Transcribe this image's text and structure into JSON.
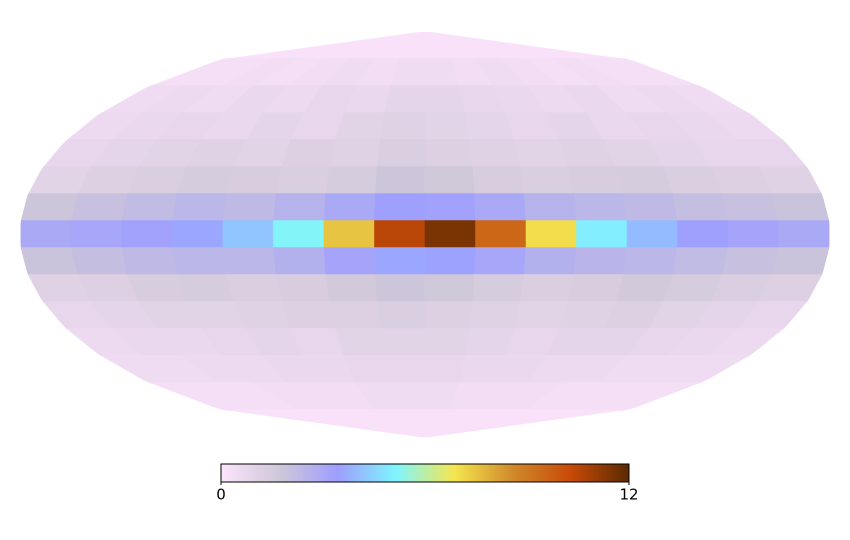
{
  "chart_data": {
    "type": "mollweide",
    "clim": [
      0,
      12
    ],
    "cbar_ticks": [
      0,
      12
    ],
    "colormap": [
      "#fde4fd",
      "#cfc8d8",
      "#9e9eff",
      "#7ff5ff",
      "#f5e650",
      "#d08a2a",
      "#c84a08",
      "#5a2a00"
    ],
    "values": [
      [
        0.2,
        0.2,
        0.2,
        0.2,
        0.2,
        0.2,
        0.2,
        0.2,
        0.2,
        0.2,
        0.2,
        0.2,
        0.2,
        0.2,
        0.2,
        0.2
      ],
      [
        0.3,
        0.3,
        0.4,
        0.3,
        0.4,
        0.5,
        0.4,
        0.5,
        0.5,
        0.4,
        0.5,
        0.4,
        0.3,
        0.4,
        0.3,
        0.3
      ],
      [
        0.5,
        0.6,
        0.5,
        0.7,
        0.6,
        0.8,
        0.7,
        0.9,
        0.9,
        0.8,
        0.7,
        0.6,
        0.7,
        0.5,
        0.6,
        0.5
      ],
      [
        0.6,
        0.7,
        0.8,
        0.7,
        0.9,
        0.8,
        1.0,
        1.1,
        1.0,
        0.9,
        0.8,
        0.9,
        0.7,
        0.8,
        0.7,
        0.6
      ],
      [
        0.8,
        0.9,
        1.0,
        1.1,
        1.0,
        1.2,
        1.1,
        1.3,
        1.2,
        1.1,
        1.0,
        1.1,
        1.0,
        0.9,
        0.8,
        0.8
      ],
      [
        1.0,
        1.2,
        1.3,
        1.5,
        1.4,
        1.3,
        1.5,
        1.8,
        1.7,
        1.4,
        1.3,
        1.4,
        1.5,
        1.3,
        1.2,
        1.1
      ],
      [
        1.8,
        2.0,
        2.2,
        2.4,
        2.3,
        2.6,
        3.0,
        3.4,
        3.3,
        3.0,
        2.6,
        2.4,
        2.3,
        2.1,
        2.0,
        1.9
      ],
      [
        3.0,
        3.1,
        3.3,
        3.6,
        4.2,
        5.2,
        7.5,
        10.5,
        11.5,
        9.5,
        7.0,
        5.0,
        4.0,
        3.4,
        3.2,
        3.0
      ],
      [
        1.9,
        2.1,
        2.3,
        2.4,
        2.4,
        2.7,
        3.2,
        3.6,
        3.5,
        3.1,
        2.7,
        2.5,
        2.4,
        2.2,
        2.0,
        1.9
      ],
      [
        1.1,
        1.2,
        1.4,
        1.5,
        1.3,
        1.4,
        1.6,
        1.8,
        1.7,
        1.5,
        1.3,
        1.4,
        1.6,
        1.5,
        1.3,
        1.2
      ],
      [
        0.8,
        0.9,
        1.0,
        1.0,
        1.1,
        1.2,
        1.2,
        1.3,
        1.2,
        1.1,
        1.0,
        1.1,
        1.2,
        1.0,
        0.9,
        0.8
      ],
      [
        0.6,
        0.7,
        0.7,
        0.8,
        0.9,
        0.8,
        1.0,
        1.0,
        1.0,
        0.9,
        0.8,
        0.9,
        0.9,
        0.8,
        0.7,
        0.6
      ],
      [
        0.5,
        0.5,
        0.6,
        0.6,
        0.7,
        0.7,
        0.8,
        0.8,
        0.8,
        0.7,
        0.7,
        0.6,
        0.6,
        0.5,
        0.5,
        0.5
      ],
      [
        0.3,
        0.3,
        0.3,
        0.4,
        0.4,
        0.4,
        0.5,
        0.5,
        0.5,
        0.4,
        0.4,
        0.4,
        0.3,
        0.3,
        0.3,
        0.3
      ],
      [
        0.2,
        0.2,
        0.2,
        0.2,
        0.2,
        0.2,
        0.2,
        0.2,
        0.2,
        0.2,
        0.2,
        0.2,
        0.2,
        0.2,
        0.2,
        0.2
      ]
    ]
  }
}
